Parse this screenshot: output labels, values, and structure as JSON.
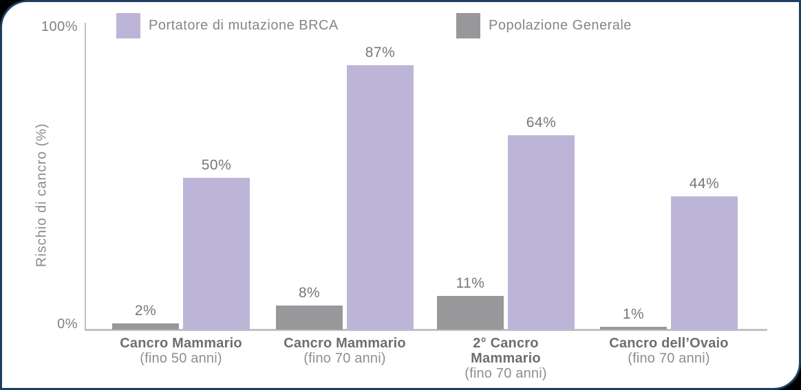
{
  "page": {
    "background_color": "#000000",
    "panel_color": "#ffffff",
    "panel_border_color": "#1e3f63"
  },
  "y_axis": {
    "title": "Rischio di cancro (%)",
    "tick_bottom": "0%",
    "tick_top": "100%"
  },
  "chart_data": {
    "type": "bar",
    "title": "",
    "xlabel": "",
    "ylabel": "Rischio di cancro (%)",
    "ylim": [
      0,
      100
    ],
    "yticks": [
      "0%",
      "100%"
    ],
    "grid": false,
    "legend_position": "top",
    "categories": [
      {
        "name_lines": [
          "Cancro Mammario"
        ],
        "qualifier": "(fino 50 anni)"
      },
      {
        "name_lines": [
          "Cancro Mammario"
        ],
        "qualifier": "(fino 70 anni)"
      },
      {
        "name_lines": [
          "2° Cancro",
          "Mammario"
        ],
        "qualifier": "(fino 70 anni)"
      },
      {
        "name_lines": [
          "Cancro dell’Ovaio"
        ],
        "qualifier": "(fino 70 anni)"
      }
    ],
    "series": [
      {
        "name": "Portatore di mutazione BRCA",
        "color": "#bdb5d7",
        "values": [
          50,
          87,
          64,
          44
        ],
        "labels": [
          "50%",
          "87%",
          "64%",
          "44%"
        ]
      },
      {
        "name": "Popolazione Generale",
        "color": "#98989b",
        "values": [
          2,
          8,
          11,
          1
        ],
        "labels": [
          "2%",
          "8%",
          "11%",
          "1%"
        ]
      }
    ]
  }
}
